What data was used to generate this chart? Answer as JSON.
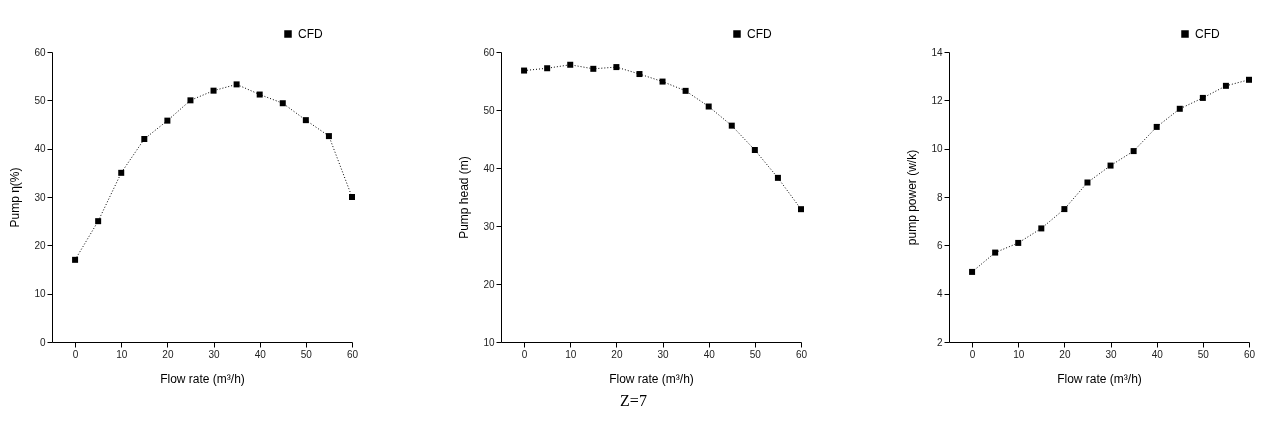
{
  "chart_data": [
    {
      "type": "line",
      "xlabel": "Flow rate (m³/h)",
      "ylabel": "Pump η(%)",
      "x": [
        0,
        5,
        10,
        15,
        20,
        25,
        30,
        35,
        40,
        45,
        50,
        55,
        60
      ],
      "xlim": [
        -5,
        60
      ],
      "xticks": [
        0,
        10,
        20,
        30,
        40,
        50,
        60
      ],
      "ylim": [
        0,
        60
      ],
      "yticks": [
        0,
        10,
        20,
        30,
        40,
        50,
        60
      ],
      "marker": "square",
      "line_style": "dotted",
      "legend": "top right",
      "grid": false,
      "series": [
        {
          "name": "CFD",
          "color": "#000000",
          "values": [
            17,
            25,
            35,
            42,
            45.8,
            50,
            52,
            53.3,
            51.2,
            49.4,
            45.9,
            42.6,
            30
          ]
        }
      ]
    },
    {
      "type": "line",
      "xlabel": "Flow rate (m³/h)",
      "ylabel": "Pump head (m)",
      "x": [
        0,
        5,
        10,
        15,
        20,
        25,
        30,
        35,
        40,
        45,
        50,
        55,
        60
      ],
      "xlim": [
        -5,
        60
      ],
      "xticks": [
        0,
        10,
        20,
        30,
        40,
        50,
        60
      ],
      "ylim": [
        10,
        60
      ],
      "yticks": [
        10,
        20,
        30,
        40,
        50,
        60
      ],
      "marker": "square",
      "line_style": "dotted",
      "legend": "top right",
      "grid": false,
      "annotations": [
        "Z=7"
      ],
      "series": [
        {
          "name": "CFD",
          "color": "#000000",
          "values": [
            56.8,
            57.2,
            57.8,
            57.1,
            57.4,
            56.2,
            54.9,
            53.3,
            50.6,
            47.3,
            43.1,
            38.3,
            32.9
          ]
        }
      ]
    },
    {
      "type": "line",
      "xlabel": "Flow rate (m³/h)",
      "ylabel": "pump power (w/k)",
      "x": [
        0,
        5,
        10,
        15,
        20,
        25,
        30,
        35,
        40,
        45,
        50,
        55,
        60
      ],
      "xlim": [
        -5,
        60
      ],
      "xticks": [
        0,
        10,
        20,
        30,
        40,
        50,
        60
      ],
      "ylim": [
        2,
        14
      ],
      "yticks": [
        2,
        4,
        6,
        8,
        10,
        12,
        14
      ],
      "marker": "square",
      "line_style": "dotted",
      "legend": "top right",
      "grid": false,
      "series": [
        {
          "name": "CFD",
          "color": "#000000",
          "values": [
            4.9,
            5.7,
            6.1,
            6.7,
            7.5,
            8.6,
            9.3,
            9.9,
            10.9,
            11.65,
            12.1,
            12.6,
            12.85
          ]
        }
      ]
    }
  ]
}
